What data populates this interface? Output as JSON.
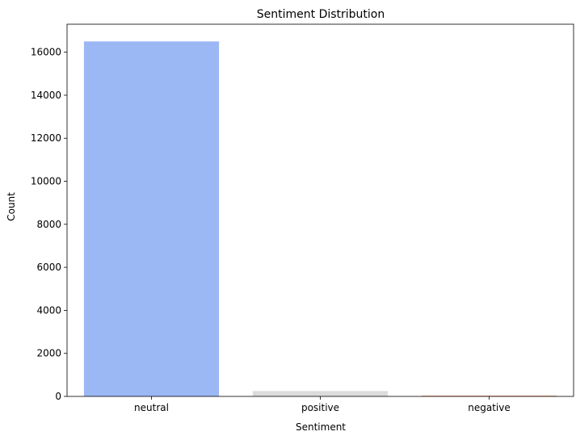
{
  "chart_data": {
    "type": "bar",
    "title": "Sentiment Distribution",
    "xlabel": "Sentiment",
    "ylabel": "Count",
    "categories": [
      "neutral",
      "positive",
      "negative"
    ],
    "values": [
      16500,
      250,
      30
    ],
    "colors": [
      "#9bb7f4",
      "#dcdcdc",
      "#f2a883"
    ],
    "ylim": [
      0,
      17300
    ],
    "yticks": [
      0,
      2000,
      4000,
      6000,
      8000,
      10000,
      12000,
      14000,
      16000
    ],
    "grid": false,
    "legend": false
  }
}
